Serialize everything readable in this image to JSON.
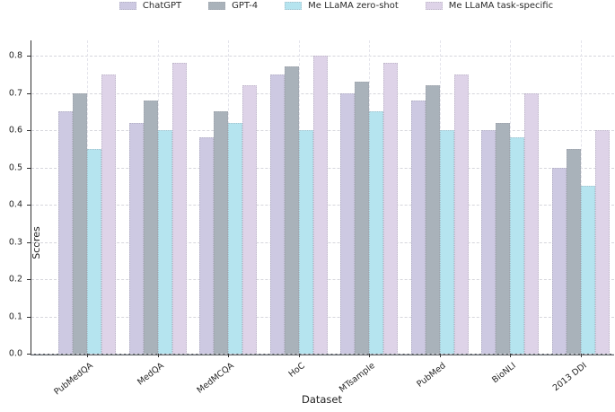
{
  "chart_data": {
    "type": "bar",
    "title": "",
    "xlabel": "Dataset",
    "ylabel": "Scores",
    "categories": [
      "PubMedQA",
      "MedQA",
      "MedMCQA",
      "HoC",
      "MTsample",
      "PubMed",
      "BioNLI",
      "2013 DDI"
    ],
    "series": [
      {
        "name": "ChatGPT",
        "color": "#cdc9e2",
        "values": [
          0.65,
          0.62,
          0.58,
          0.75,
          0.7,
          0.68,
          0.6,
          0.5
        ]
      },
      {
        "name": "GPT-4",
        "color": "#a9b2ba",
        "values": [
          0.7,
          0.68,
          0.65,
          0.77,
          0.73,
          0.72,
          0.62,
          0.55
        ]
      },
      {
        "name": "Me LLaMA zero-shot",
        "color": "#b5e4ef",
        "values": [
          0.55,
          0.6,
          0.62,
          0.6,
          0.65,
          0.6,
          0.58,
          0.45
        ]
      },
      {
        "name": "Me LLaMA task-specific",
        "color": "#ded3e8",
        "values": [
          0.75,
          0.78,
          0.72,
          0.8,
          0.78,
          0.75,
          0.7,
          0.6
        ]
      }
    ],
    "yticks": [
      0.0,
      0.1,
      0.2,
      0.3,
      0.4,
      0.5,
      0.6,
      0.7,
      0.8
    ],
    "ylim": [
      0.0,
      0.841
    ],
    "grid": true,
    "legend_position": "top"
  }
}
